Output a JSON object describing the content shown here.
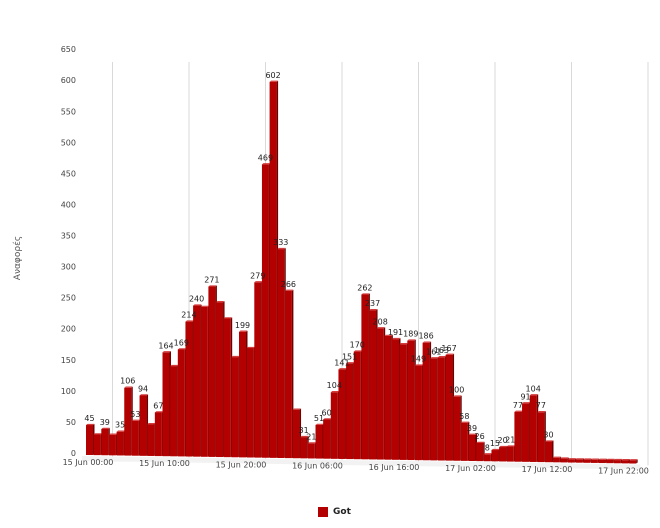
{
  "chart_data": {
    "type": "bar",
    "ylabel": "Αναφορές",
    "ylim": [
      0,
      650
    ],
    "yticks": [
      0,
      50,
      100,
      150,
      200,
      250,
      300,
      350,
      400,
      450,
      500,
      550,
      600,
      650
    ],
    "xtick_labels": [
      {
        "index": 0,
        "label": "15 Jun 00:00"
      },
      {
        "index": 10,
        "label": "15 Jun 10:00"
      },
      {
        "index": 20,
        "label": "15 Jun 20:00"
      },
      {
        "index": 30,
        "label": "16 Jun 06:00"
      },
      {
        "index": 40,
        "label": "16 Jun 16:00"
      },
      {
        "index": 50,
        "label": "17 Jun 02:00"
      },
      {
        "index": 60,
        "label": "17 Jun 12:00"
      },
      {
        "index": 70,
        "label": "17 Jun 22:00"
      }
    ],
    "series": [
      {
        "name": "Got",
        "color": "#b30000",
        "values": [
          45,
          30,
          39,
          30,
          35,
          106,
          53,
          94,
          48,
          67,
          164,
          142,
          169,
          214,
          240,
          238,
          271,
          246,
          220,
          158,
          199,
          173,
          279,
          469,
          602,
          333,
          266,
          75,
          31,
          21,
          51,
          60,
          104,
          141,
          151,
          170,
          262,
          237,
          208,
          196,
          191,
          183,
          189,
          149,
          186,
          161,
          163,
          167,
          100,
          58,
          39,
          26,
          8,
          15,
          20,
          21,
          77,
          91,
          104,
          77,
          30,
          4,
          3,
          2,
          2,
          1,
          1,
          1,
          1,
          1,
          0,
          0
        ]
      }
    ],
    "data_labels": [
      {
        "index": 0,
        "text": "45"
      },
      {
        "index": 2,
        "text": "39"
      },
      {
        "index": 4,
        "text": "35"
      },
      {
        "index": 5,
        "text": "106"
      },
      {
        "index": 6,
        "text": "53"
      },
      {
        "index": 7,
        "text": "94"
      },
      {
        "index": 9,
        "text": "67"
      },
      {
        "index": 10,
        "text": "164"
      },
      {
        "index": 12,
        "text": "169"
      },
      {
        "index": 13,
        "text": "214"
      },
      {
        "index": 14,
        "text": "240"
      },
      {
        "index": 16,
        "text": "271"
      },
      {
        "index": 20,
        "text": "199"
      },
      {
        "index": 22,
        "text": "279"
      },
      {
        "index": 23,
        "text": "469"
      },
      {
        "index": 24,
        "text": "602"
      },
      {
        "index": 25,
        "text": "333"
      },
      {
        "index": 26,
        "text": "266"
      },
      {
        "index": 28,
        "text": "31"
      },
      {
        "index": 29,
        "text": "21"
      },
      {
        "index": 30,
        "text": "51"
      },
      {
        "index": 31,
        "text": "60"
      },
      {
        "index": 32,
        "text": "104"
      },
      {
        "index": 33,
        "text": "141"
      },
      {
        "index": 34,
        "text": "151"
      },
      {
        "index": 35,
        "text": "170"
      },
      {
        "index": 36,
        "text": "262"
      },
      {
        "index": 37,
        "text": "237"
      },
      {
        "index": 38,
        "text": "208"
      },
      {
        "index": 40,
        "text": "191"
      },
      {
        "index": 42,
        "text": "189"
      },
      {
        "index": 43,
        "text": "149"
      },
      {
        "index": 44,
        "text": "186"
      },
      {
        "index": 45,
        "text": "161"
      },
      {
        "index": 46,
        "text": "163"
      },
      {
        "index": 47,
        "text": "167"
      },
      {
        "index": 48,
        "text": "100"
      },
      {
        "index": 49,
        "text": "58"
      },
      {
        "index": 50,
        "text": "39"
      },
      {
        "index": 51,
        "text": "26"
      },
      {
        "index": 52,
        "text": "8"
      },
      {
        "index": 53,
        "text": "15"
      },
      {
        "index": 54,
        "text": "20"
      },
      {
        "index": 55,
        "text": "21"
      },
      {
        "index": 56,
        "text": "77"
      },
      {
        "index": 57,
        "text": "91"
      },
      {
        "index": 58,
        "text": "104"
      },
      {
        "index": 59,
        "text": "77"
      },
      {
        "index": 60,
        "text": "30"
      }
    ],
    "grid": "vertical",
    "legend": {
      "position": "bottom-center"
    }
  }
}
